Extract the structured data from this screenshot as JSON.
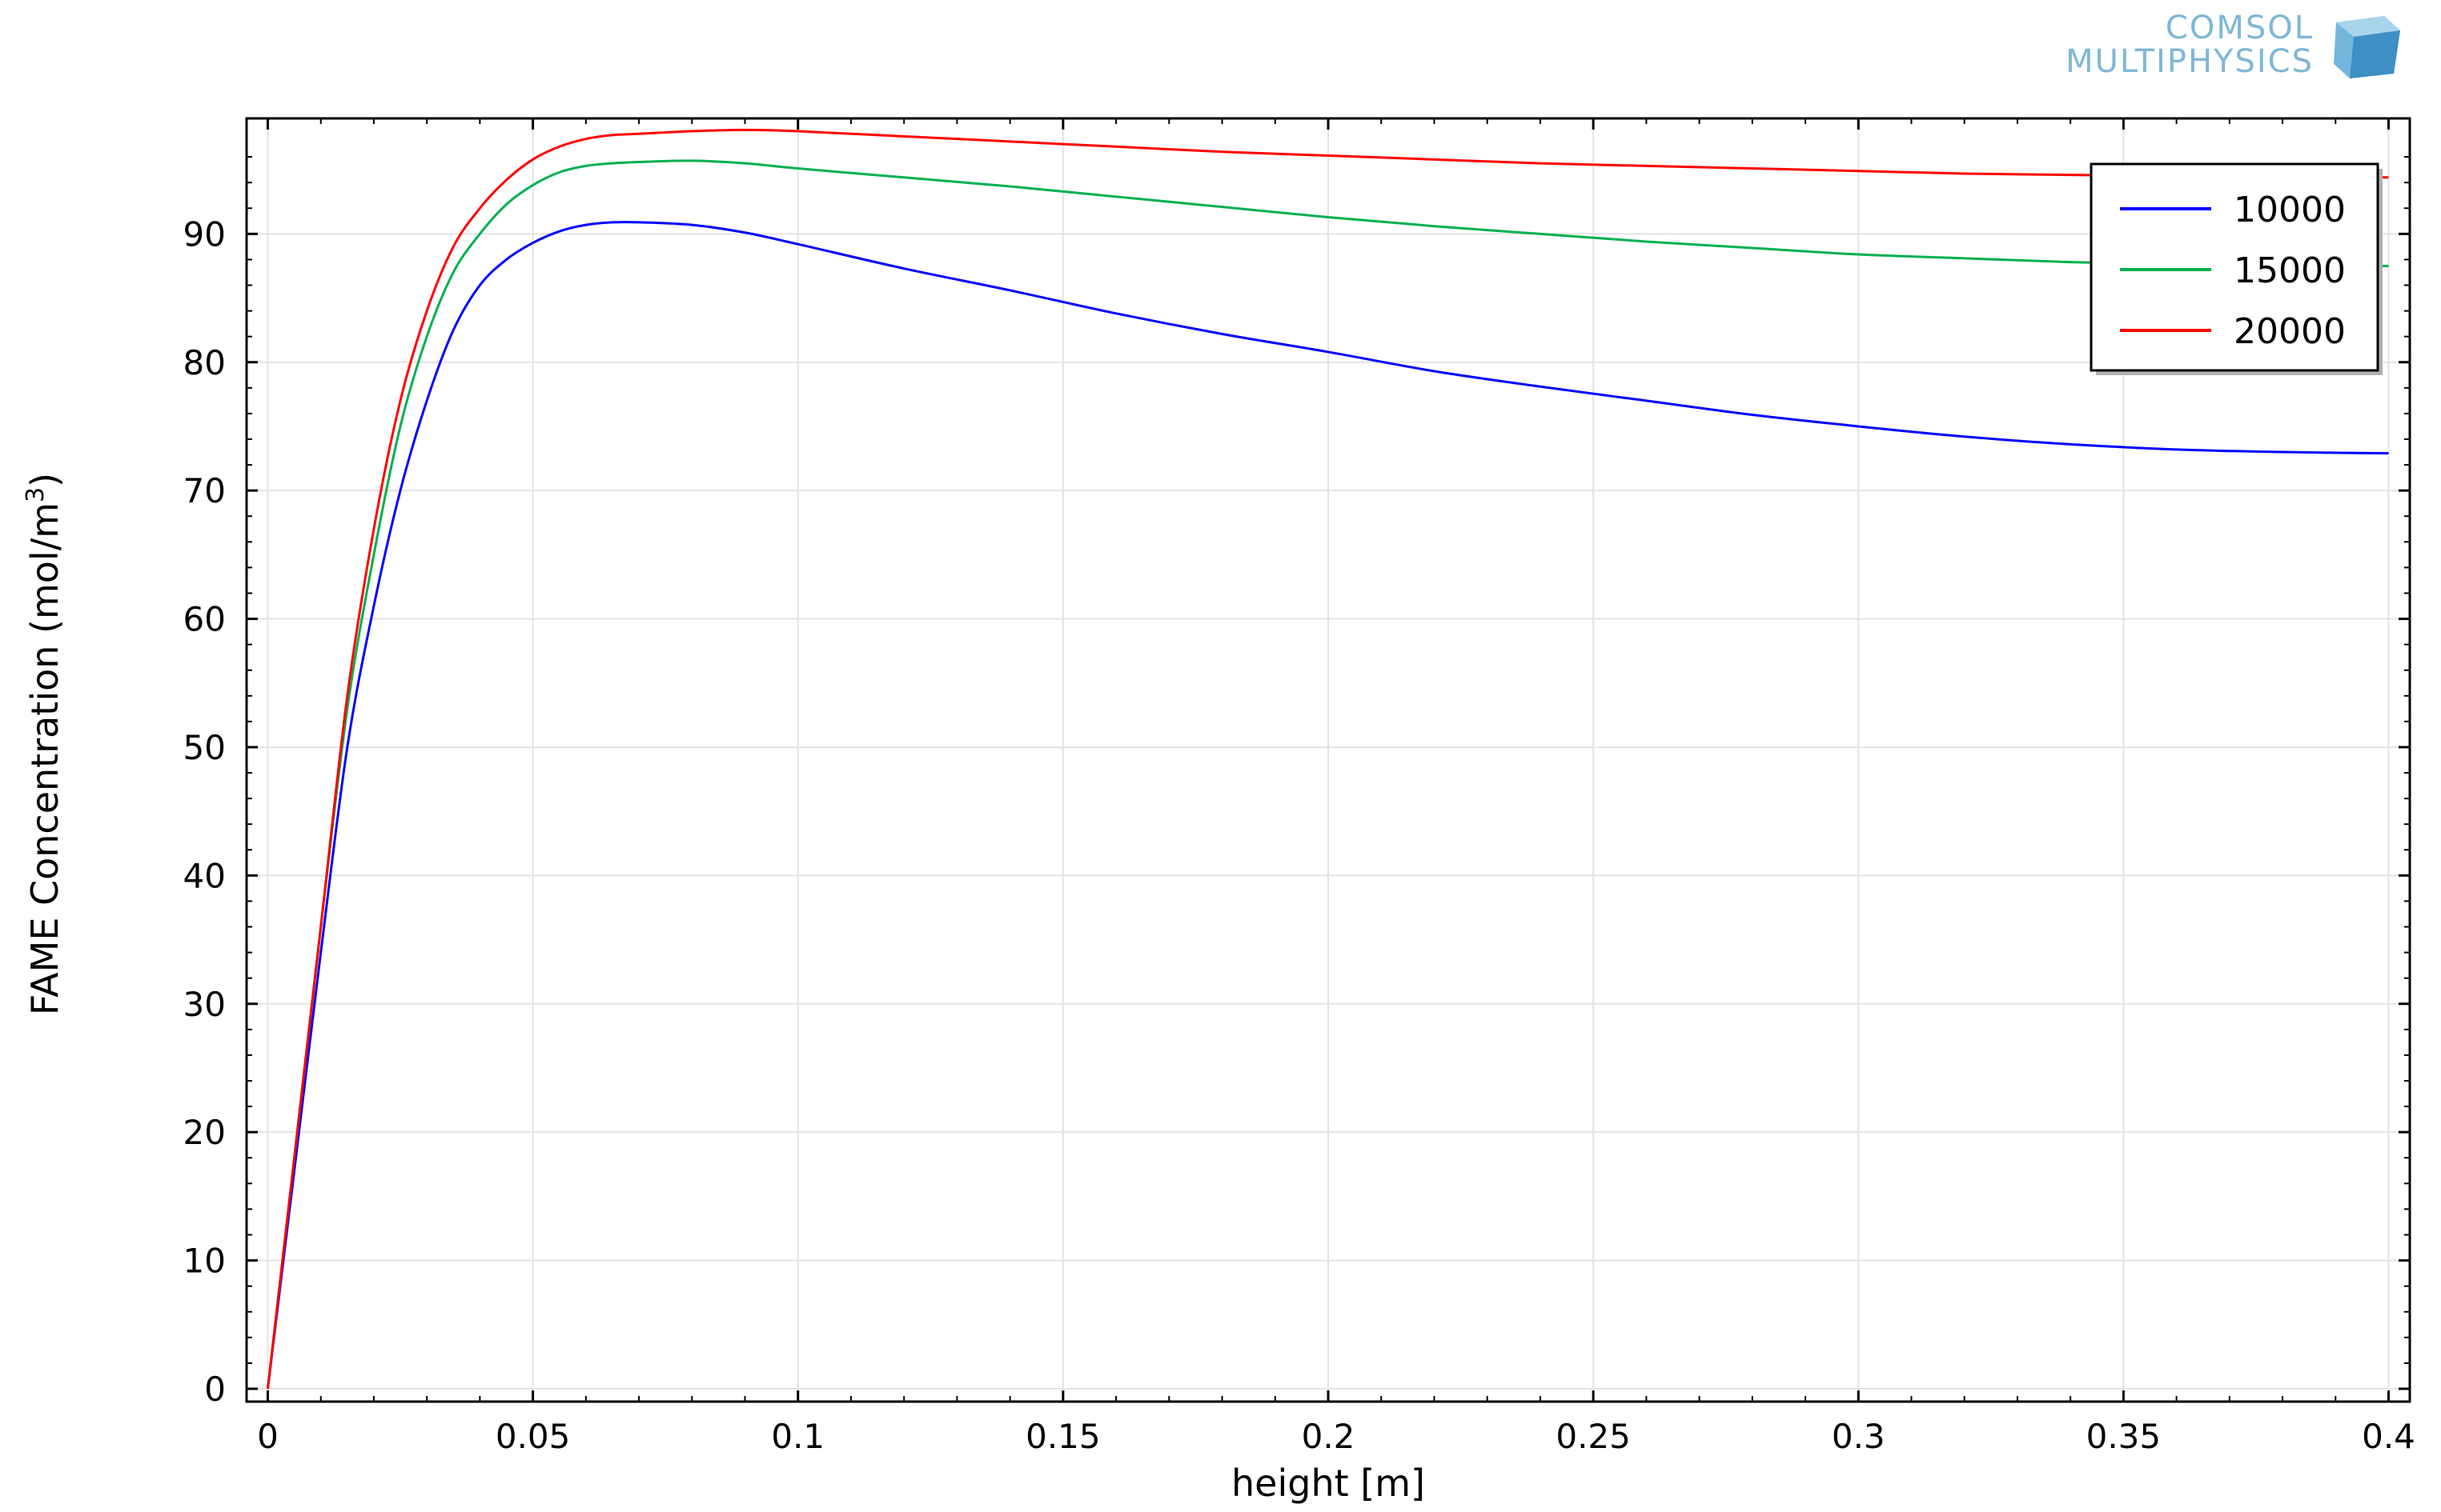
{
  "logo": {
    "line1": "COMSOL",
    "line2": "MULTIPHYSICS",
    "color": "#7fb7d6"
  },
  "chart_data": {
    "type": "line",
    "title": "",
    "xlabel": "height [m]",
    "ylabel_main": "FAME Concentration (mol/m",
    "ylabel_sup": "3",
    "ylabel_close": ")",
    "xlim": [
      -0.004,
      0.404
    ],
    "ylim": [
      -1,
      99
    ],
    "x_ticks": [
      0,
      0.05,
      0.1,
      0.15,
      0.2,
      0.25,
      0.3,
      0.35,
      0.4
    ],
    "x_tick_labels": [
      "0",
      "0.05",
      "0.1",
      "0.15",
      "0.2",
      "0.25",
      "0.3",
      "0.35",
      "0.4"
    ],
    "y_ticks": [
      0,
      10,
      20,
      30,
      40,
      50,
      60,
      70,
      80,
      90
    ],
    "y_tick_labels": [
      "0",
      "10",
      "20",
      "30",
      "40",
      "50",
      "60",
      "70",
      "80",
      "90"
    ],
    "grid": true,
    "legend_position": "top-right",
    "series": [
      {
        "name": "10000",
        "color": "#0000ff",
        "x": [
          0,
          0.005,
          0.01,
          0.015,
          0.02,
          0.025,
          0.03,
          0.035,
          0.04,
          0.045,
          0.05,
          0.055,
          0.06,
          0.065,
          0.07,
          0.08,
          0.09,
          0.1,
          0.12,
          0.14,
          0.16,
          0.18,
          0.2,
          0.22,
          0.24,
          0.26,
          0.28,
          0.3,
          0.32,
          0.34,
          0.36,
          0.38,
          0.4
        ],
        "y": [
          0,
          17,
          34,
          50,
          61,
          70,
          77,
          82.5,
          86,
          88,
          89.3,
          90.2,
          90.7,
          90.9,
          90.9,
          90.7,
          90.1,
          89.2,
          87.3,
          85.6,
          83.8,
          82.2,
          80.8,
          79.3,
          78.1,
          77.0,
          75.9,
          75.0,
          74.2,
          73.6,
          73.2,
          73.0,
          72.9
        ]
      },
      {
        "name": "15000",
        "color": "#00b050",
        "x": [
          0,
          0.005,
          0.01,
          0.015,
          0.02,
          0.025,
          0.03,
          0.035,
          0.04,
          0.045,
          0.05,
          0.055,
          0.06,
          0.065,
          0.07,
          0.08,
          0.09,
          0.1,
          0.12,
          0.14,
          0.16,
          0.18,
          0.2,
          0.22,
          0.24,
          0.26,
          0.28,
          0.3,
          0.32,
          0.34,
          0.36,
          0.38,
          0.4
        ],
        "y": [
          0,
          18,
          36,
          53,
          65,
          75,
          82,
          87,
          90,
          92.3,
          93.8,
          94.8,
          95.3,
          95.5,
          95.6,
          95.7,
          95.5,
          95.1,
          94.4,
          93.7,
          92.9,
          92.1,
          91.3,
          90.6,
          90.0,
          89.4,
          88.9,
          88.4,
          88.1,
          87.8,
          87.6,
          87.5,
          87.5
        ]
      },
      {
        "name": "20000",
        "color": "#ff0000",
        "x": [
          0,
          0.005,
          0.01,
          0.015,
          0.02,
          0.025,
          0.03,
          0.035,
          0.04,
          0.045,
          0.05,
          0.055,
          0.06,
          0.065,
          0.07,
          0.08,
          0.09,
          0.1,
          0.12,
          0.14,
          0.16,
          0.18,
          0.2,
          0.22,
          0.24,
          0.26,
          0.28,
          0.3,
          0.32,
          0.34,
          0.36,
          0.38,
          0.4
        ],
        "y": [
          0,
          18,
          36,
          54,
          67,
          77,
          84,
          89,
          92,
          94.2,
          95.8,
          96.8,
          97.4,
          97.7,
          97.8,
          98.0,
          98.1,
          98.0,
          97.6,
          97.2,
          96.8,
          96.4,
          96.1,
          95.8,
          95.5,
          95.3,
          95.1,
          94.9,
          94.7,
          94.6,
          94.5,
          94.4,
          94.4
        ]
      }
    ]
  }
}
